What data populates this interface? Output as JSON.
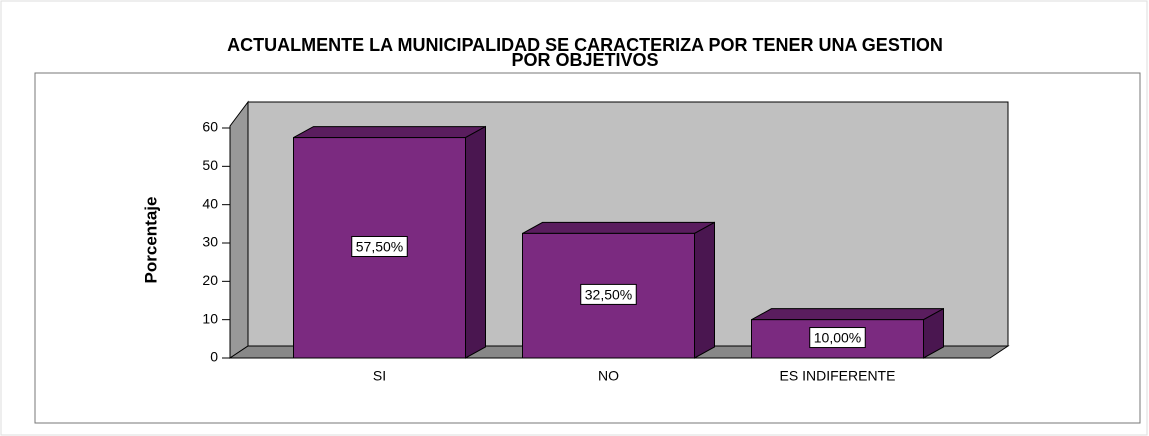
{
  "chart_data": {
    "type": "bar3d",
    "title": [
      "ACTUALMENTE LA MUNICIPALIDAD SE CARACTERIZA POR TENER UNA GESTION",
      "POR OBJETIVOS"
    ],
    "y_label": "Porcentaje",
    "categories": [
      "SI",
      "NO",
      "ES INDIFERENTE"
    ],
    "values": [
      57.5,
      32.5,
      10
    ],
    "value_labels": [
      "57,50%",
      "32,50%",
      "10,00%"
    ],
    "color": "#7b2a80",
    "ylim": [
      0,
      60
    ],
    "yticks": [
      0,
      10,
      20,
      30,
      40,
      50,
      60
    ]
  }
}
